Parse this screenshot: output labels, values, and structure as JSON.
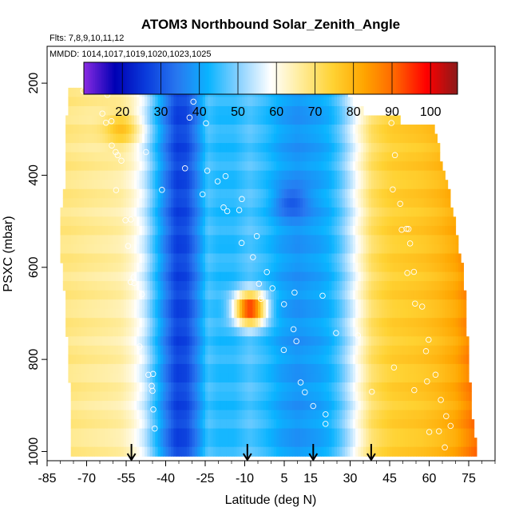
{
  "chart_data": {
    "type": "heatmap",
    "title": "ATOM3 Northbound Solar_Zenith_Angle",
    "subtitle_flights": "Flts: 7,8,9,10,11,12",
    "subtitle_dates": "MMDD: 1014,1017,1019,1020,1023,1025",
    "xlabel": "Latitude (deg N)",
    "ylabel": "PSXC (mbar)",
    "xlim": [
      -85,
      85
    ],
    "ylim": [
      1020,
      120
    ],
    "xticks": [
      "-85",
      "-70",
      "-55",
      "-40",
      "-25",
      "-10",
      "5",
      "15",
      "30",
      "45",
      "60",
      "75"
    ],
    "xtick_values": [
      -85,
      -70,
      -55,
      -40,
      -25,
      -10,
      5,
      15,
      30,
      45,
      60,
      75
    ],
    "yticks": [
      "200",
      "400",
      "600",
      "800",
      "1000"
    ],
    "ytick_values": [
      200,
      400,
      600,
      800,
      1000
    ],
    "colorbar": {
      "range": [
        10,
        107
      ],
      "tick_values": [
        20,
        30,
        40,
        50,
        60,
        70,
        80,
        90,
        100
      ],
      "tick_labels": [
        "20",
        "30",
        "40",
        "50",
        "60",
        "70",
        "80",
        "90",
        "100"
      ],
      "colors": [
        "#8a2be2",
        "#0000b4",
        "#0a3cdc",
        "#2878f0",
        "#0ab4ff",
        "#8cd2ff",
        "#ffffff",
        "#ffeb96",
        "#ffd232",
        "#ffa500",
        "#ff6400",
        "#ff0000",
        "#8b1a1a"
      ]
    },
    "profile": {
      "lat": [
        -77,
        -70,
        -62,
        -57,
        -53,
        -48,
        -44,
        -40,
        -36,
        -32,
        -28,
        -24,
        -20,
        -14,
        -8,
        -2,
        4,
        10,
        14,
        18,
        22,
        26,
        30,
        34,
        38,
        42,
        46,
        52,
        58,
        64,
        70,
        74,
        78
      ],
      "sza": [
        68,
        67,
        66,
        65,
        62,
        55,
        45,
        35,
        27,
        28,
        36,
        46,
        44,
        44,
        47,
        44,
        40,
        38,
        39,
        40,
        42,
        47,
        54,
        62,
        70,
        73,
        75,
        76,
        77,
        79,
        82,
        86,
        90
      ]
    },
    "anomalies": [
      {
        "lat": -8,
        "p": 690,
        "sza": 97
      },
      {
        "lat": -57,
        "p": 300,
        "sza": 78
      },
      {
        "lat": 8,
        "p": 460,
        "sza": 30
      }
    ],
    "tracks": [
      {
        "lat": [
          -77,
          76
        ],
        "p": [
          210,
          1000
        ]
      },
      {
        "lat": [
          -63,
          -42
        ],
        "p": [
          220,
          1000
        ]
      },
      {
        "lat": [
          -30,
          22
        ],
        "p": [
          220,
          1000
        ]
      },
      {
        "lat": [
          45,
          67
        ],
        "p": [
          300,
          1000
        ]
      }
    ],
    "arrow_lats": [
      -53,
      -9,
      16,
      38
    ]
  }
}
